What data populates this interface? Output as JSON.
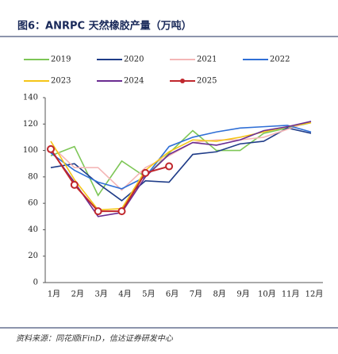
{
  "chart_data": {
    "type": "line",
    "title": "图6：ANRPC 天然橡胶产量（万吨）",
    "source": "资料来源：同花顺iFinD，信达证券研发中心",
    "categories": [
      "1月",
      "2月",
      "3月",
      "4月",
      "5月",
      "6月",
      "7月",
      "8月",
      "9月",
      "10月",
      "11月",
      "12月"
    ],
    "series": [
      {
        "name": "2019",
        "color": "#7dc656",
        "values": [
          96,
          103,
          66,
          92,
          80,
          98,
          115,
          100,
          100,
          113,
          117,
          121
        ]
      },
      {
        "name": "2020",
        "color": "#1f3c88",
        "values": [
          87,
          90,
          75,
          62,
          77,
          76,
          97,
          99,
          105,
          107,
          117,
          113
        ]
      },
      {
        "name": "2021",
        "color": "#f4b6b6",
        "values": [
          104,
          87,
          87,
          70,
          87,
          96,
          106,
          108,
          108,
          110,
          116,
          122
        ]
      },
      {
        "name": "2022",
        "color": "#2f6fd6",
        "values": [
          98,
          85,
          76,
          71,
          80,
          103,
          110,
          114,
          117,
          118,
          119,
          114
        ]
      },
      {
        "name": "2023",
        "color": "#f5c518",
        "values": [
          107,
          78,
          55,
          56,
          85,
          99,
          108,
          107,
          110,
          114,
          118,
          121
        ]
      },
      {
        "name": "2024",
        "color": "#6a2c91",
        "values": [
          100,
          76,
          50,
          53,
          80,
          97,
          106,
          104,
          108,
          115,
          118,
          122
        ]
      },
      {
        "name": "2025",
        "color": "#c0272d",
        "markers": true,
        "values": [
          101,
          74,
          54,
          54,
          83,
          88,
          null,
          null,
          null,
          null,
          null,
          null
        ]
      }
    ],
    "ylim": [
      0,
      140
    ],
    "yticks": [
      0,
      20,
      40,
      60,
      80,
      100,
      120,
      140
    ],
    "grid": false
  }
}
